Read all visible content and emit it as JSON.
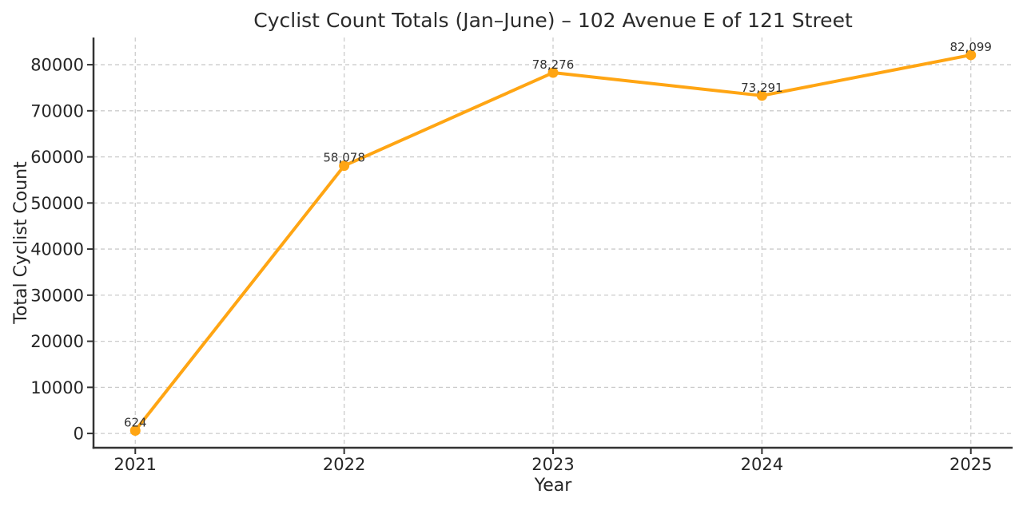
{
  "chart_data": {
    "type": "line",
    "title": "Cyclist Count Totals (Jan–June) – 102 Avenue E of 121 Street",
    "xlabel": "Year",
    "ylabel": "Total Cyclist Count",
    "x": [
      2021,
      2022,
      2023,
      2024,
      2025
    ],
    "series": [
      {
        "name": "Total Cyclist Count",
        "values": [
          624,
          58078,
          78276,
          73291,
          82099
        ],
        "point_labels": [
          "624",
          "58,078",
          "78,276",
          "73,291",
          "82,099"
        ]
      }
    ],
    "x_tick_labels": [
      "2021",
      "2022",
      "2023",
      "2024",
      "2025"
    ],
    "y_ticks": [
      0,
      10000,
      20000,
      30000,
      40000,
      50000,
      60000,
      70000,
      80000
    ],
    "y_tick_labels": [
      "0",
      "10000",
      "20000",
      "30000",
      "40000",
      "50000",
      "60000",
      "70000",
      "80000"
    ],
    "xlim": [
      2020.8,
      2025.2
    ],
    "ylim": [
      -3100,
      85900
    ],
    "grid": true,
    "grid_style": "dashed",
    "legend_position": "none",
    "colors": {
      "line": "#FFA513",
      "marker": "#FFA513",
      "grid": "#cccccc",
      "spine": "#333333",
      "tick": "#333333",
      "text": "#262626",
      "annotation": "#333333",
      "background": "#ffffff"
    }
  }
}
